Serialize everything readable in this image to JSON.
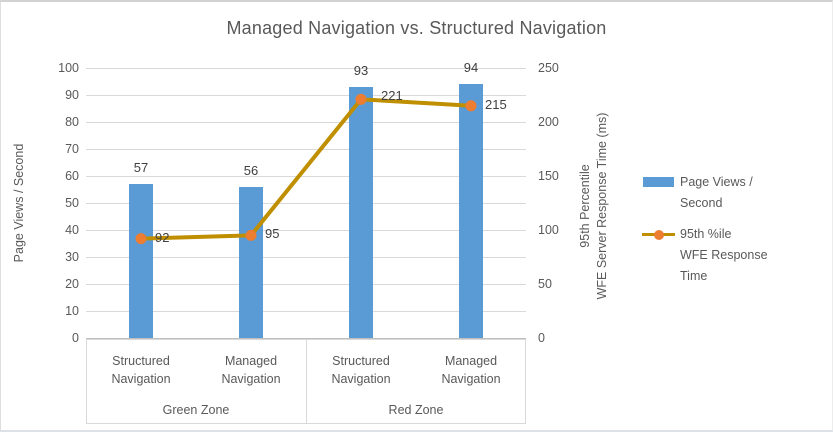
{
  "chart_data": {
    "type": "bar+line",
    "title": "Managed Navigation vs. Structured Navigation",
    "categories": [
      "Structured Navigation",
      "Managed Navigation",
      "Structured Navigation",
      "Managed Navigation"
    ],
    "category_groups": [
      {
        "label": "Green Zone",
        "span": [
          0,
          1
        ]
      },
      {
        "label": "Red Zone",
        "span": [
          2,
          3
        ]
      }
    ],
    "series": [
      {
        "name": "Page Views / Second",
        "type": "bar",
        "axis": "left",
        "values": [
          57,
          56,
          93,
          94
        ],
        "color": "#5B9BD5"
      },
      {
        "name": "95th %ile WFE Response Time",
        "type": "line",
        "axis": "right",
        "values": [
          92,
          95,
          221,
          215
        ],
        "color": "#BF8F00",
        "marker_color": "#ED7D31"
      }
    ],
    "left_axis": {
      "title": "Page Views / Second",
      "min": 0,
      "max": 100,
      "step": 10,
      "ticks": [
        0,
        10,
        20,
        30,
        40,
        50,
        60,
        70,
        80,
        90,
        100
      ]
    },
    "right_axis": {
      "title_lines": [
        "95th Percentile",
        "WFE Server Response Time (ms)"
      ],
      "min": 0,
      "max": 250,
      "step": 50,
      "ticks": [
        0,
        50,
        100,
        150,
        200,
        250
      ]
    },
    "legend_position": "right",
    "grid": true,
    "legend": [
      {
        "swatch": "bar",
        "lines": [
          "Page Views /",
          "Second"
        ]
      },
      {
        "swatch": "line",
        "lines": [
          "95th %ile",
          "WFE Response Time"
        ]
      }
    ]
  },
  "colors": {
    "bar": "#5B9BD5",
    "line": "#BF8F00",
    "marker": "#ED7D31",
    "grid": "#D9D9D9",
    "axis_line": "#BFBFBF",
    "axis_text": "#595959",
    "data_label": "#404040"
  }
}
